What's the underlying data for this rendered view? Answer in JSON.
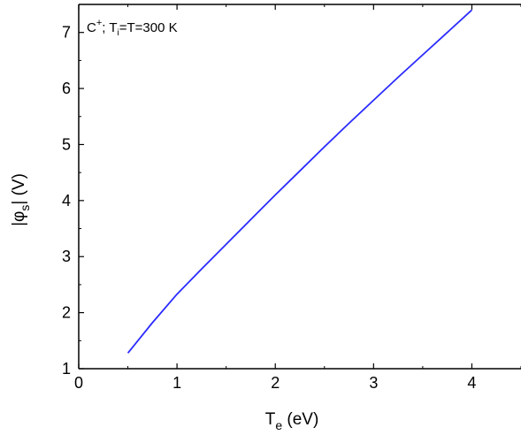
{
  "chart_data": {
    "type": "line",
    "title": "",
    "annotation": {
      "base": "C",
      "ion_sup": "+",
      "sep": "; T",
      "ti_sub": "i",
      "rest": "=T=300 K"
    },
    "xlabel": {
      "main": "T",
      "sub": "e",
      "unit": " (eV)"
    },
    "ylabel": {
      "pre": "|φ",
      "sub": "s",
      "post": "| (V)"
    },
    "xlim": [
      0,
      4.5
    ],
    "ylim": [
      1,
      7.5
    ],
    "x_ticks": [
      "0",
      "1",
      "2",
      "3",
      "4"
    ],
    "y_ticks": [
      "1",
      "2",
      "3",
      "4",
      "5",
      "6",
      "7"
    ],
    "grid": false,
    "series": [
      {
        "color": "#2b2bff",
        "x": [
          0.5,
          0.75,
          1.0,
          1.25,
          1.5,
          1.75,
          2.0,
          2.25,
          2.5,
          2.75,
          3.0,
          3.25,
          3.5,
          3.75,
          4.0
        ],
        "y": [
          1.28,
          1.82,
          2.33,
          2.78,
          3.22,
          3.66,
          4.1,
          4.53,
          4.96,
          5.38,
          5.79,
          6.2,
          6.6,
          7.0,
          7.4
        ]
      }
    ]
  }
}
